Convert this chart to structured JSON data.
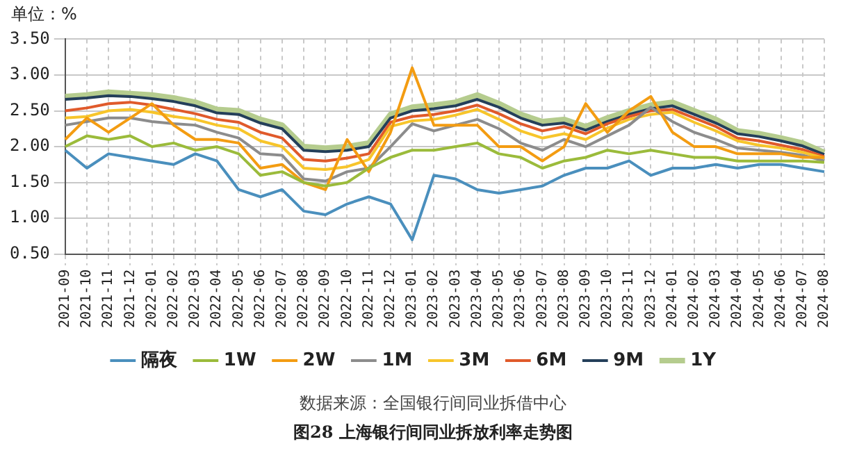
{
  "chart_data": {
    "type": "line",
    "title": "图28  上海银行间同业拆放利率走势图",
    "ylabel": "单位：%",
    "annotations": [
      "数据来源：全国银行间同业拆借中心"
    ],
    "categories": [
      "2021-09",
      "2021-10",
      "2021-11",
      "2021-12",
      "2022-01",
      "2022-02",
      "2022-03",
      "2022-04",
      "2022-05",
      "2022-06",
      "2022-07",
      "2022-08",
      "2022-09",
      "2022-10",
      "2022-11",
      "2022-12",
      "2023-01",
      "2023-02",
      "2023-03",
      "2023-04",
      "2023-05",
      "2023-06",
      "2023-07",
      "2023-08",
      "2023-09",
      "2023-10",
      "2023-11",
      "2023-12",
      "2024-01",
      "2024-02",
      "2024-03",
      "2024-04",
      "2024-05",
      "2024-06",
      "2024-07",
      "2024-08"
    ],
    "ylim": [
      0.5,
      3.5
    ],
    "yticks": [
      {
        "value": 0.5,
        "label": "0.50"
      },
      {
        "value": 1,
        "label": "1.00"
      },
      {
        "value": 1.5,
        "label": "1.50"
      },
      {
        "value": 2,
        "label": "2.00"
      },
      {
        "value": 2.5,
        "label": "2.50"
      },
      {
        "value": 3,
        "label": "3.00"
      },
      {
        "value": 3.5,
        "label": "3.50"
      }
    ],
    "grid": true,
    "legend": "bottom",
    "marker": "none",
    "line_style": "solid",
    "series": [
      {
        "name": "隔夜",
        "color": "#4a8fbd",
        "values": [
          1.95,
          1.7,
          1.9,
          1.85,
          1.8,
          1.75,
          1.9,
          1.8,
          1.4,
          1.3,
          1.4,
          1.1,
          1.05,
          1.2,
          1.3,
          1.2,
          0.7,
          1.6,
          1.55,
          1.4,
          1.35,
          1.4,
          1.45,
          1.6,
          1.7,
          1.7,
          1.8,
          1.6,
          1.7,
          1.7,
          1.75,
          1.7,
          1.75,
          1.75,
          1.7,
          1.65
        ]
      },
      {
        "name": "1W",
        "color": "#9bbb3b",
        "values": [
          2.0,
          2.15,
          2.1,
          2.15,
          2.0,
          2.05,
          1.95,
          2.0,
          1.9,
          1.6,
          1.65,
          1.5,
          1.45,
          1.5,
          1.7,
          1.85,
          1.95,
          1.95,
          2.0,
          2.05,
          1.9,
          1.85,
          1.7,
          1.8,
          1.85,
          1.95,
          1.9,
          1.95,
          1.9,
          1.85,
          1.85,
          1.8,
          1.8,
          1.8,
          1.8,
          1.78
        ]
      },
      {
        "name": "2W",
        "color": "#f39c12",
        "values": [
          2.1,
          2.4,
          2.2,
          2.4,
          2.6,
          2.3,
          2.1,
          2.1,
          2.05,
          1.7,
          1.75,
          1.5,
          1.4,
          2.1,
          1.65,
          2.2,
          3.1,
          2.3,
          2.3,
          2.3,
          2.0,
          2.0,
          1.8,
          2.0,
          2.6,
          2.2,
          2.5,
          2.7,
          2.2,
          2.0,
          2.0,
          1.9,
          1.9,
          1.9,
          1.85,
          1.85
        ]
      },
      {
        "name": "1M",
        "color": "#8c8c8c",
        "values": [
          2.3,
          2.35,
          2.4,
          2.4,
          2.35,
          2.32,
          2.3,
          2.2,
          2.12,
          1.9,
          1.88,
          1.55,
          1.52,
          1.65,
          1.7,
          2.0,
          2.32,
          2.22,
          2.3,
          2.38,
          2.25,
          2.05,
          1.95,
          2.1,
          2.0,
          2.15,
          2.3,
          2.55,
          2.35,
          2.2,
          2.1,
          1.98,
          1.95,
          1.92,
          1.88,
          1.8
        ]
      },
      {
        "name": "3M",
        "color": "#f7c52b",
        "values": [
          2.4,
          2.42,
          2.5,
          2.52,
          2.48,
          2.42,
          2.38,
          2.3,
          2.25,
          2.08,
          2.0,
          1.7,
          1.68,
          1.72,
          1.82,
          2.28,
          2.36,
          2.38,
          2.44,
          2.52,
          2.38,
          2.22,
          2.12,
          2.18,
          2.1,
          2.26,
          2.38,
          2.45,
          2.48,
          2.34,
          2.22,
          2.08,
          2.02,
          1.98,
          1.92,
          1.84
        ]
      },
      {
        "name": "6M",
        "color": "#e05a2b",
        "values": [
          2.5,
          2.54,
          2.6,
          2.62,
          2.58,
          2.52,
          2.46,
          2.38,
          2.34,
          2.2,
          2.12,
          1.82,
          1.8,
          1.84,
          1.9,
          2.34,
          2.42,
          2.45,
          2.5,
          2.58,
          2.46,
          2.32,
          2.22,
          2.28,
          2.18,
          2.32,
          2.42,
          2.5,
          2.52,
          2.4,
          2.28,
          2.12,
          2.08,
          2.02,
          1.96,
          1.86
        ]
      },
      {
        "name": "9M",
        "color": "#243f5a",
        "values": [
          2.66,
          2.68,
          2.71,
          2.7,
          2.67,
          2.63,
          2.57,
          2.47,
          2.45,
          2.33,
          2.25,
          1.95,
          1.93,
          1.95,
          2.0,
          2.4,
          2.5,
          2.53,
          2.57,
          2.66,
          2.55,
          2.4,
          2.3,
          2.33,
          2.23,
          2.35,
          2.45,
          2.53,
          2.57,
          2.45,
          2.33,
          2.18,
          2.14,
          2.08,
          2.01,
          1.89
        ]
      },
      {
        "name": "1Y",
        "color": "#b5cc8e",
        "values": [
          2.7,
          2.72,
          2.76,
          2.74,
          2.72,
          2.68,
          2.62,
          2.52,
          2.5,
          2.38,
          2.3,
          2.0,
          1.98,
          2.0,
          2.05,
          2.45,
          2.55,
          2.58,
          2.62,
          2.72,
          2.6,
          2.45,
          2.35,
          2.38,
          2.28,
          2.4,
          2.5,
          2.58,
          2.62,
          2.5,
          2.38,
          2.22,
          2.18,
          2.12,
          2.05,
          1.92
        ]
      }
    ]
  }
}
